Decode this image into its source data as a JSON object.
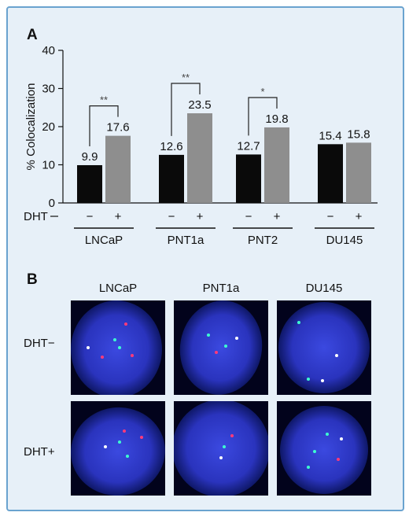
{
  "panel_a_label": "A",
  "panel_b_label": "B",
  "chart_data": {
    "type": "bar",
    "ylabel": "% Colocalization",
    "ylim": [
      0,
      40
    ],
    "yticks": [
      "0",
      "10",
      "20",
      "30",
      "40"
    ],
    "treatment_label": "DHT",
    "treatment_ticks": [
      "−",
      "+"
    ],
    "groups": [
      {
        "name": "LNCaP",
        "values": [
          9.9,
          17.6
        ],
        "labels": [
          "9.9",
          "17.6"
        ],
        "significance": "**"
      },
      {
        "name": "PNT1a",
        "values": [
          12.6,
          23.5
        ],
        "labels": [
          "12.6",
          "23.5"
        ],
        "significance": "**"
      },
      {
        "name": "PNT2",
        "values": [
          12.7,
          19.8
        ],
        "labels": [
          "12.7",
          "19.8"
        ],
        "significance": "*"
      },
      {
        "name": "DU145",
        "values": [
          15.4,
          15.8
        ],
        "labels": [
          "15.4",
          "15.8"
        ],
        "significance": ""
      }
    ],
    "series_colors": [
      "#0a0a0a",
      "#8e8e8e"
    ]
  },
  "micrographs": {
    "columns": [
      "LNCaP",
      "PNT1a",
      "DU145"
    ],
    "rows": [
      "DHT−",
      "DHT+"
    ],
    "nucleus_color": "#2c36c6",
    "spot_colors": [
      "#ff3a7a",
      "#3dffd0",
      "#ffffff"
    ]
  }
}
